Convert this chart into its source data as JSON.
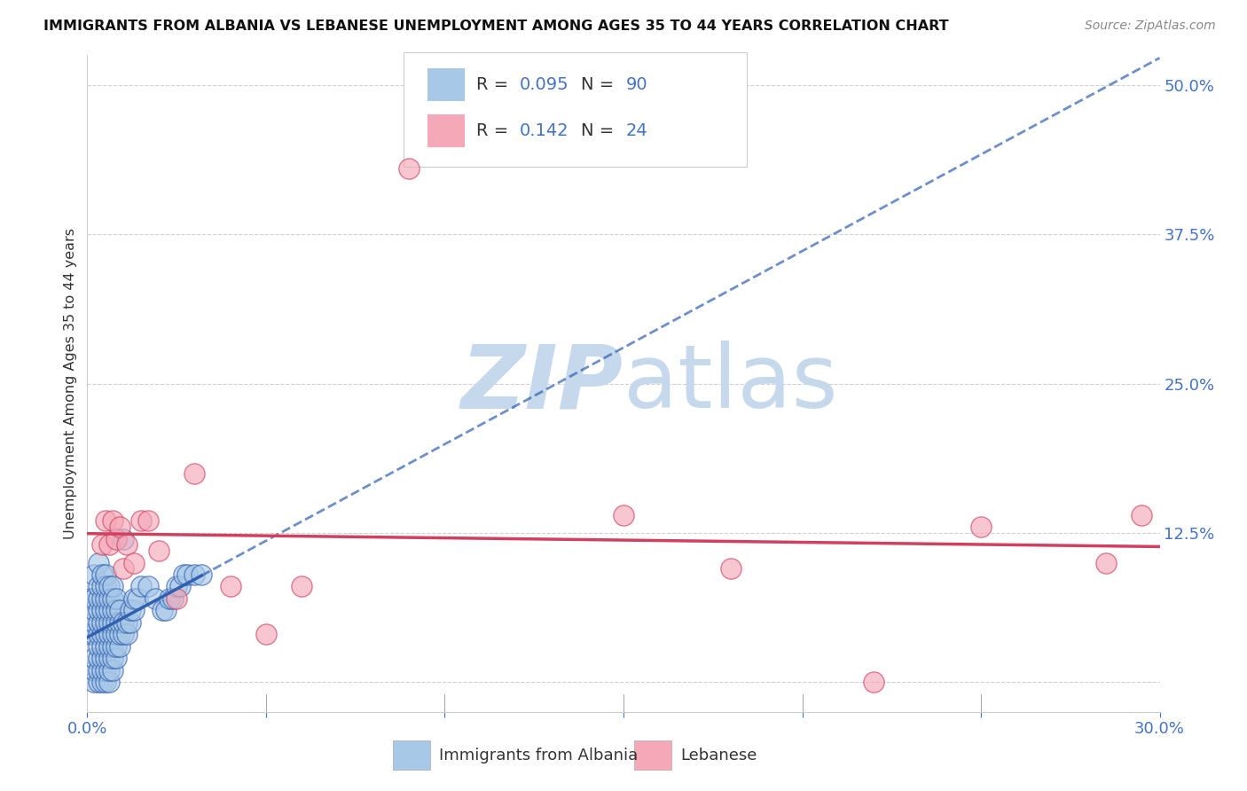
{
  "title": "IMMIGRANTS FROM ALBANIA VS LEBANESE UNEMPLOYMENT AMONG AGES 35 TO 44 YEARS CORRELATION CHART",
  "source": "Source: ZipAtlas.com",
  "ylabel": "Unemployment Among Ages 35 to 44 years",
  "xlim": [
    0.0,
    0.3
  ],
  "ylim": [
    -0.025,
    0.525
  ],
  "albania_R": "0.095",
  "albania_N": "90",
  "lebanese_R": "0.142",
  "lebanese_N": "24",
  "albania_color": "#a8c8e8",
  "lebanese_color": "#f4a8b8",
  "albania_line_color": "#3060b0",
  "lebanese_line_color": "#d04060",
  "axis_color": "#4472c4",
  "watermark_zip_color": "#c5d8ec",
  "watermark_atlas_color": "#c5d8ec",
  "background_color": "#ffffff",
  "grid_color": "#cccccc",
  "albania_x": [
    0.001,
    0.001,
    0.002,
    0.002,
    0.002,
    0.002,
    0.002,
    0.002,
    0.002,
    0.002,
    0.003,
    0.003,
    0.003,
    0.003,
    0.003,
    0.003,
    0.003,
    0.003,
    0.003,
    0.003,
    0.004,
    0.004,
    0.004,
    0.004,
    0.004,
    0.004,
    0.004,
    0.004,
    0.004,
    0.004,
    0.005,
    0.005,
    0.005,
    0.005,
    0.005,
    0.005,
    0.005,
    0.005,
    0.005,
    0.005,
    0.006,
    0.006,
    0.006,
    0.006,
    0.006,
    0.006,
    0.006,
    0.006,
    0.006,
    0.007,
    0.007,
    0.007,
    0.007,
    0.007,
    0.007,
    0.007,
    0.007,
    0.008,
    0.008,
    0.008,
    0.008,
    0.008,
    0.008,
    0.009,
    0.009,
    0.009,
    0.009,
    0.01,
    0.01,
    0.01,
    0.011,
    0.011,
    0.012,
    0.012,
    0.013,
    0.013,
    0.014,
    0.015,
    0.017,
    0.019,
    0.021,
    0.022,
    0.023,
    0.024,
    0.025,
    0.026,
    0.027,
    0.028,
    0.03,
    0.032
  ],
  "albania_y": [
    0.04,
    0.07,
    0.0,
    0.01,
    0.02,
    0.04,
    0.05,
    0.06,
    0.07,
    0.09,
    0.0,
    0.01,
    0.02,
    0.03,
    0.04,
    0.05,
    0.06,
    0.07,
    0.08,
    0.1,
    0.0,
    0.01,
    0.02,
    0.03,
    0.04,
    0.05,
    0.06,
    0.07,
    0.08,
    0.09,
    0.0,
    0.01,
    0.02,
    0.03,
    0.04,
    0.05,
    0.06,
    0.07,
    0.08,
    0.09,
    0.0,
    0.01,
    0.02,
    0.03,
    0.04,
    0.05,
    0.06,
    0.07,
    0.08,
    0.01,
    0.02,
    0.03,
    0.04,
    0.05,
    0.06,
    0.07,
    0.08,
    0.02,
    0.03,
    0.04,
    0.05,
    0.06,
    0.07,
    0.03,
    0.04,
    0.05,
    0.06,
    0.04,
    0.05,
    0.12,
    0.04,
    0.05,
    0.05,
    0.06,
    0.06,
    0.07,
    0.07,
    0.08,
    0.08,
    0.07,
    0.06,
    0.06,
    0.07,
    0.07,
    0.08,
    0.08,
    0.09,
    0.09,
    0.09,
    0.09
  ],
  "lebanese_x": [
    0.004,
    0.005,
    0.006,
    0.007,
    0.008,
    0.009,
    0.01,
    0.011,
    0.013,
    0.015,
    0.017,
    0.02,
    0.025,
    0.03,
    0.04,
    0.05,
    0.06,
    0.09,
    0.15,
    0.18,
    0.22,
    0.25,
    0.285,
    0.295
  ],
  "lebanese_y": [
    0.115,
    0.135,
    0.115,
    0.135,
    0.12,
    0.13,
    0.095,
    0.115,
    0.1,
    0.135,
    0.135,
    0.11,
    0.07,
    0.175,
    0.08,
    0.04,
    0.08,
    0.43,
    0.14,
    0.095,
    0.0,
    0.13,
    0.1,
    0.14
  ]
}
